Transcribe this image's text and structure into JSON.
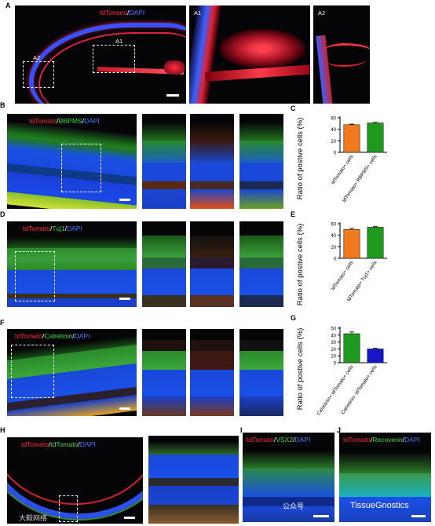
{
  "panel_labels": {
    "A": "A",
    "B": "B",
    "C": "C",
    "D": "D",
    "E": "E",
    "F": "F",
    "G": "G",
    "H": "H",
    "I": "I",
    "J": "J"
  },
  "panelA": {
    "stain_red": "tdTomato",
    "stain_sep": "/",
    "stain_blue": "DAPI",
    "box1": "A1",
    "box2": "A2",
    "inset1": "A1",
    "inset2": "A2"
  },
  "panelB": {
    "stain_red": "tdTomato",
    "stain_sep1": "/",
    "stain_green": "RBPMS",
    "stain_sep2": "/",
    "stain_blue": "DAPI"
  },
  "panelD": {
    "stain_red": "tdTomato",
    "stain_sep1": "/",
    "stain_green": "Tuj1",
    "stain_sep2": "/",
    "stain_blue": "DAPI"
  },
  "panelF": {
    "stain_red": "tdTomato",
    "stain_sep1": "/",
    "stain_green": "Calretinin",
    "stain_sep2": "/",
    "stain_blue": "DAPI"
  },
  "panelH": {
    "stain_red": "tdTomato",
    "stain_sep1": "/",
    "stain_green": "tdTomato",
    "stain_sep2": "/",
    "stain_blue": "DAPI"
  },
  "panelI": {
    "stain_red": "tdTomato",
    "stain_sep1": "/",
    "stain_green": "VSX2",
    "stain_sep2": "/",
    "stain_blue": "DAPI"
  },
  "panelJ": {
    "stain_red": "tdTomato",
    "stain_sep1": "/",
    "stain_green": "Recoverin",
    "stain_sep2": "/",
    "stain_blue": "DAPI"
  },
  "watermarks": {
    "left": "大毅网络",
    "center": "公众号",
    "right": "TissueGnostics"
  },
  "colors": {
    "orange": "#f07a1e",
    "green": "#1e9a1e",
    "blue": "#1616c4"
  },
  "chart_data": [
    {
      "id": "C",
      "type": "bar",
      "categories": [
        "tdTomato+ cells",
        "tdTomato+ RBPMS+ cells"
      ],
      "values": [
        48,
        51
      ],
      "errors": [
        1,
        1
      ],
      "colors": [
        "#f07a1e",
        "#1e9a1e"
      ],
      "ylabel": "Ratio of postive cells (%)",
      "ylim": [
        0,
        60
      ],
      "yticks": [
        0,
        20,
        40,
        60
      ]
    },
    {
      "id": "E",
      "type": "bar",
      "categories": [
        "tdTomato+ cells",
        "tdTomato+ Tuj1+ cells"
      ],
      "values": [
        50,
        54
      ],
      "errors": [
        2,
        1
      ],
      "colors": [
        "#f07a1e",
        "#1e9a1e"
      ],
      "ylabel": "Ratio of postive cells (%)",
      "ylim": [
        0,
        60
      ],
      "yticks": [
        0,
        20,
        40,
        60
      ]
    },
    {
      "id": "G",
      "type": "bar",
      "categories": [
        "Calretinin+ tdTomato+ cells",
        "Calretinin- tdTomato+ cells"
      ],
      "values": [
        42,
        20
      ],
      "errors": [
        2.5,
        1
      ],
      "colors": [
        "#1e9a1e",
        "#1616c4"
      ],
      "ylabel": "Ratio of postive cells (%)",
      "ylim": [
        0,
        50
      ],
      "yticks": [
        0,
        10,
        20,
        30,
        40,
        50
      ]
    }
  ]
}
